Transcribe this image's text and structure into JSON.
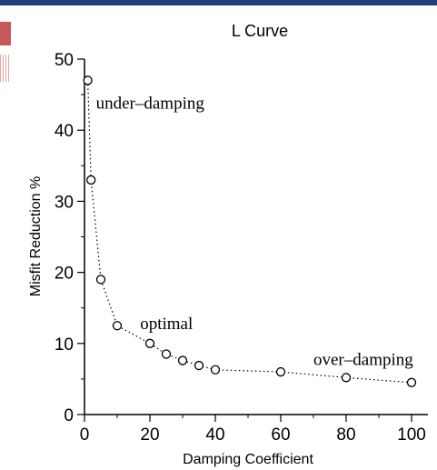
{
  "chart_data": {
    "type": "scatter",
    "title": "L Curve",
    "xlabel": "Damping Coefficient",
    "ylabel": "Misfit Reduction %",
    "xlim": [
      0,
      105
    ],
    "ylim": [
      0,
      50
    ],
    "xticks": [
      0,
      20,
      40,
      60,
      80,
      100
    ],
    "yticks": [
      0,
      10,
      20,
      30,
      40,
      50
    ],
    "grid": false,
    "line_style": "dotted",
    "marker": "open-circle",
    "series": [
      {
        "x": [
          1,
          2,
          5,
          10,
          20,
          25,
          30,
          35,
          40,
          60,
          80,
          100
        ],
        "y": [
          47,
          33,
          19,
          12.5,
          10,
          8.5,
          7.6,
          6.9,
          6.3,
          6.0,
          5.2,
          4.5
        ]
      }
    ],
    "annotations": [
      {
        "text": "under–damping",
        "x": 3.5,
        "y": 43
      },
      {
        "text": "optimal",
        "x": 17,
        "y": 12
      },
      {
        "text": "over–damping",
        "x": 70,
        "y": 7
      }
    ]
  },
  "colors": {
    "topbar": "#1f3f7a",
    "deco_red": "#c6585a",
    "ink": "#000000"
  }
}
